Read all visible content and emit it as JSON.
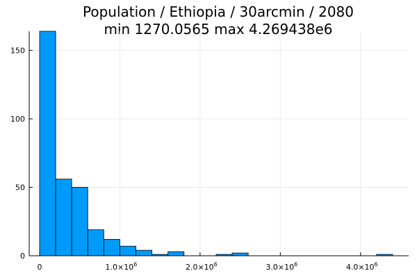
{
  "chart_data": {
    "type": "bar",
    "title_line1": "Population / Ethiopia / 30arcmin / 2080",
    "title_line2": "min 1270.0565  max 4.269438e6",
    "xlabel": "",
    "ylabel": "",
    "bin_width": 200000,
    "bins": [
      {
        "x0": 0,
        "x1": 200000,
        "count": 164
      },
      {
        "x0": 200000,
        "x1": 400000,
        "count": 56
      },
      {
        "x0": 400000,
        "x1": 600000,
        "count": 50
      },
      {
        "x0": 600000,
        "x1": 800000,
        "count": 19
      },
      {
        "x0": 800000,
        "x1": 1000000,
        "count": 12
      },
      {
        "x0": 1000000,
        "x1": 1200000,
        "count": 7
      },
      {
        "x0": 1200000,
        "x1": 1400000,
        "count": 4
      },
      {
        "x0": 1400000,
        "x1": 1600000,
        "count": 1
      },
      {
        "x0": 1600000,
        "x1": 1800000,
        "count": 3
      },
      {
        "x0": 1800000,
        "x1": 2000000,
        "count": 0
      },
      {
        "x0": 2000000,
        "x1": 2200000,
        "count": 0
      },
      {
        "x0": 2200000,
        "x1": 2400000,
        "count": 1
      },
      {
        "x0": 2400000,
        "x1": 2600000,
        "count": 2
      },
      {
        "x0": 2600000,
        "x1": 2800000,
        "count": 0
      },
      {
        "x0": 2800000,
        "x1": 3000000,
        "count": 0
      },
      {
        "x0": 3000000,
        "x1": 3200000,
        "count": 0
      },
      {
        "x0": 3200000,
        "x1": 3400000,
        "count": 0
      },
      {
        "x0": 3400000,
        "x1": 3600000,
        "count": 0
      },
      {
        "x0": 3600000,
        "x1": 3800000,
        "count": 0
      },
      {
        "x0": 3800000,
        "x1": 4000000,
        "count": 0
      },
      {
        "x0": 4000000,
        "x1": 4200000,
        "count": 0
      },
      {
        "x0": 4200000,
        "x1": 4400000,
        "count": 1
      }
    ],
    "xlim": [
      -130000,
      4600000
    ],
    "ylim": [
      0,
      164
    ],
    "xticks": [
      {
        "value": 0,
        "base": "0",
        "exp": ""
      },
      {
        "value": 1000000,
        "base": "1.0×10",
        "exp": "6"
      },
      {
        "value": 2000000,
        "base": "2.0×10",
        "exp": "6"
      },
      {
        "value": 3000000,
        "base": "3.0×10",
        "exp": "6"
      },
      {
        "value": 4000000,
        "base": "4.0×10",
        "exp": "6"
      }
    ],
    "yticks": [
      0,
      50,
      100,
      150
    ],
    "grid": true,
    "legend": "none",
    "colors": {
      "bar": "#009af9",
      "bar_edge": "#000000",
      "grid": "#ebebeb",
      "axis": "#000000"
    }
  }
}
